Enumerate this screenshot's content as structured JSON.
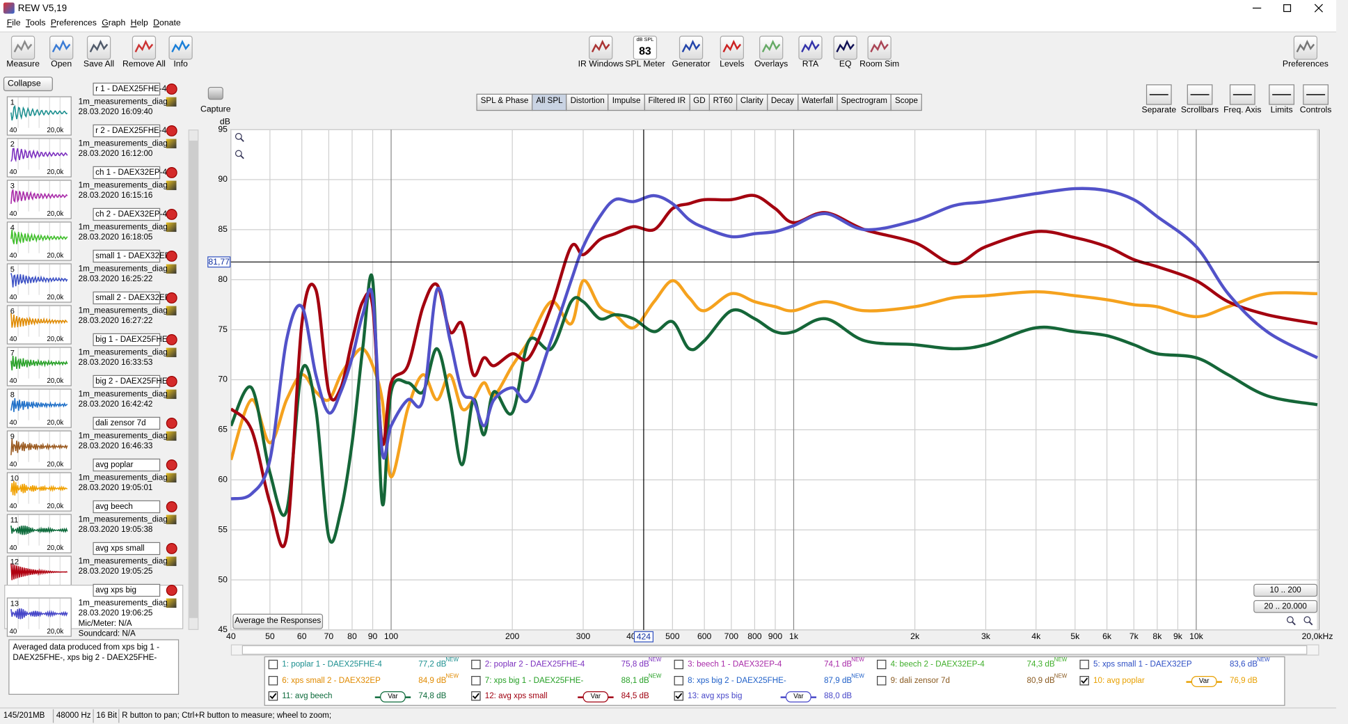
{
  "window": {
    "title": "REW V5,19"
  },
  "menu": [
    "File",
    "Tools",
    "Preferences",
    "Graph",
    "Help",
    "Donate"
  ],
  "toolbar": {
    "left": [
      "Measure",
      "Open",
      "Save All",
      "Remove All",
      "Info"
    ],
    "center": [
      "IR Windows",
      "SPL Meter",
      "Generator",
      "Levels",
      "Overlays",
      "RTA",
      "EQ",
      "Room Sim"
    ],
    "spl_meter_icon": {
      "unit": "dB SPL",
      "reading": "83"
    },
    "right": [
      "Preferences"
    ]
  },
  "panel": {
    "collapse": "Collapse",
    "thumb_axis": [
      "40",
      "20,0k"
    ],
    "measurements": [
      {
        "number": "1",
        "name": "r 1 - DAEX25FHE-4",
        "file": "1m_measurements_diag",
        "date": "28.03.2020 16:09:40",
        "color": "#1b8f8f"
      },
      {
        "number": "2",
        "name": "r 2 - DAEX25FHE-4",
        "file": "1m_measurements_diag",
        "date": "28.03.2020 16:12:00",
        "color": "#7b2fbe"
      },
      {
        "number": "3",
        "name": "ch 1 - DAEX32EP-4",
        "file": "1m_measurements_diag",
        "date": "28.03.2020 16:15:16",
        "color": "#a82aa8"
      },
      {
        "number": "4",
        "name": "ch 2 - DAEX32EP-4",
        "file": "1m_measurements_diag",
        "date": "28.03.2020 16:18:05",
        "color": "#3fbe2a"
      },
      {
        "number": "5",
        "name": "small 1 - DAEX32EP",
        "file": "1m_measurements_diag",
        "date": "28.03.2020 16:25:22",
        "color": "#3a4fc4"
      },
      {
        "number": "6",
        "name": "small 2 - DAEX32EP",
        "file": "1m_measurements_diag",
        "date": "28.03.2020 16:27:22",
        "color": "#e08a00"
      },
      {
        "number": "7",
        "name": "big 1 - DAEX25FHE-",
        "file": "1m_measurements_diag",
        "date": "28.03.2020 16:33:53",
        "color": "#26a026"
      },
      {
        "number": "8",
        "name": "big 2 - DAEX25FHE-",
        "file": "1m_measurements_diag",
        "date": "28.03.2020 16:42:42",
        "color": "#2070c8"
      },
      {
        "number": "9",
        "name": "dali zensor 7d",
        "file": "1m_measurements_diag",
        "date": "28.03.2020 16:46:33",
        "color": "#9a5a20"
      },
      {
        "number": "10",
        "name": "avg poplar",
        "file": "1m_measurements_diag",
        "date": "28.03.2020 19:05:01",
        "color": "#f0a000"
      },
      {
        "number": "11",
        "name": "avg beech",
        "file": "1m_measurements_diag",
        "date": "28.03.2020 19:05:38",
        "color": "#0c6a3a"
      },
      {
        "number": "12",
        "name": "avg xps small",
        "file": "1m_measurements_diag",
        "date": "28.03.2020 19:05:25",
        "color": "#b00010"
      },
      {
        "number": "13",
        "name": "avg xps big",
        "file": "1m_measurements_diag",
        "date": "28.03.2020 19:06:25",
        "color": "#4646c8",
        "mic": "Mic/Meter: N/A",
        "soundcard": "Soundcard: N/A"
      }
    ],
    "notes": "Averaged data produced from xps big 1 - DAEX25FHE-, xps big 2 - DAEX25FHE-"
  },
  "graph": {
    "capture": "Capture",
    "tabs": [
      "SPL & Phase",
      "All SPL",
      "Distortion",
      "Impulse",
      "Filtered IR",
      "GD",
      "RT60",
      "Clarity",
      "Decay",
      "Waterfall",
      "Spectrogram",
      "Scope"
    ],
    "selected_tab": 1,
    "tools": [
      "Separate",
      "Scrollbars",
      "Freq. Axis",
      "Limits",
      "Controls"
    ],
    "range_buttons": [
      "10 .. 200",
      "20 .. 20.000"
    ],
    "average_button": "Average the Responses",
    "legend": [
      {
        "label": "1: poplar 1 - DAEX25FHE-4",
        "value": "77,2 dB",
        "new": "NEW",
        "checked": false,
        "color": "#1b8f8f"
      },
      {
        "label": "2: poplar 2 - DAEX25FHE-4",
        "value": "75,8 dB",
        "new": "NEW",
        "checked": false,
        "color": "#7b2fbe"
      },
      {
        "label": "3: beech 1 - DAEX32EP-4",
        "value": "74,1 dB",
        "new": "NEW",
        "checked": false,
        "color": "#a82aa8"
      },
      {
        "label": "4: beech 2 - DAEX32EP-4",
        "value": "74,3 dB",
        "new": "NEW",
        "checked": false,
        "color": "#3fae2a"
      },
      {
        "label": "5: xps small 1 - DAEX32EP",
        "value": "83,6 dB",
        "new": "NEW",
        "checked": false,
        "color": "#2e4fc4"
      },
      {
        "label": "6: xps small 2 - DAEX32EP",
        "value": "84,9 dB",
        "new": "NEW",
        "checked": false,
        "color": "#e08a00"
      },
      {
        "label": "7: xps big 1 - DAEX25FHE-",
        "value": "88,1 dB",
        "new": "NEW",
        "checked": false,
        "color": "#26a026"
      },
      {
        "label": "8: xps big 2 - DAEX25FHE-",
        "value": "87,9 dB",
        "new": "NEW",
        "checked": false,
        "color": "#2060c8"
      },
      {
        "label": "9: dali zensor 7d",
        "value": "80,9 dB",
        "new": "NEW",
        "checked": false,
        "color": "#8a5a20"
      },
      {
        "label": "10: avg poplar",
        "value": "76,9 dB",
        "var": "Var",
        "checked": true,
        "color": "#e8a000"
      },
      {
        "label": "11: avg beech",
        "value": "74,8 dB",
        "var": "Var",
        "checked": true,
        "color": "#0c6a3a"
      },
      {
        "label": "12: avg xps small",
        "value": "84,5 dB",
        "var": "Var",
        "checked": true,
        "color": "#a00010"
      },
      {
        "label": "13: avg xps big",
        "value": "88,0 dB",
        "var": "Var",
        "checked": true,
        "color": "#4646c8"
      }
    ]
  },
  "status": [
    "145/201MB",
    "48000 Hz",
    "16 Bit",
    "R button to pan; Ctrl+R button to measure; wheel to zoom;"
  ],
  "chart_data": {
    "type": "line",
    "ylabel": "dB",
    "xscale": "log",
    "grid": true,
    "xlim": [
      40,
      20000
    ],
    "ylim": [
      45,
      95
    ],
    "xticks": [
      40,
      50,
      60,
      70,
      80,
      90,
      100,
      200,
      300,
      400,
      500,
      600,
      700,
      800,
      900,
      {
        "value": 1000,
        "label": "1k"
      },
      {
        "value": 2000,
        "label": "2k"
      },
      {
        "value": 3000,
        "label": "3k"
      },
      {
        "value": 4000,
        "label": "4k"
      },
      {
        "value": 5000,
        "label": "5k"
      },
      {
        "value": 6000,
        "label": "6k"
      },
      {
        "value": 7000,
        "label": "7k"
      },
      {
        "value": 8000,
        "label": "8k"
      },
      {
        "value": 9000,
        "label": "9k"
      },
      {
        "value": 10000,
        "label": "10k"
      },
      {
        "value": 20000,
        "label": "20,0kHz"
      }
    ],
    "yticks": [
      45,
      50,
      55,
      60,
      65,
      70,
      75,
      80,
      85,
      90,
      95
    ],
    "cursor": {
      "x": 424,
      "y": {
        "value": 81.77,
        "label": "81,77"
      }
    },
    "x": [
      40,
      45,
      50,
      55,
      60,
      65,
      70,
      75,
      80,
      85,
      90,
      95,
      100,
      110,
      120,
      130,
      140,
      150,
      160,
      170,
      180,
      200,
      220,
      250,
      280,
      300,
      330,
      360,
      400,
      450,
      500,
      550,
      600,
      700,
      800,
      900,
      1000,
      1200,
      1500,
      2000,
      2500,
      3000,
      4000,
      5000,
      6000,
      7000,
      8000,
      10000,
      12000,
      15000,
      20000
    ],
    "series": [
      {
        "name": "10: avg poplar",
        "color": "#f5a21e",
        "values": [
          62,
          68,
          63.7,
          68,
          70.5,
          68.8,
          68,
          70.5,
          72.2,
          73.1,
          71.4,
          68,
          60.3,
          67.1,
          70.5,
          68,
          70.5,
          67.1,
          68,
          69.7,
          68.4,
          71.4,
          73.9,
          77.8,
          75.6,
          79.9,
          77.3,
          76.5,
          75.2,
          77.8,
          79.9,
          78.2,
          76.9,
          78.6,
          77.8,
          77.3,
          76.9,
          77.8,
          76.9,
          77.3,
          78.2,
          78.4,
          78.8,
          78.4,
          78,
          77.5,
          77.3,
          76.3,
          77.3,
          78.6,
          78.6
        ]
      },
      {
        "name": "11: avg beech",
        "color": "#156638",
        "values": [
          65.4,
          69.2,
          60.7,
          56.9,
          70.9,
          67.1,
          54.3,
          56.9,
          63.7,
          73.1,
          79.9,
          57.7,
          68.8,
          69.7,
          68.8,
          73.1,
          68,
          61.5,
          68,
          64.5,
          68.8,
          66.7,
          73.9,
          73.1,
          77.8,
          77.8,
          76.1,
          76.5,
          76.1,
          74.8,
          75.8,
          73.1,
          73.9,
          76.9,
          76.1,
          74.8,
          74.8,
          76.1,
          73.9,
          73.5,
          73.1,
          73.5,
          75.2,
          74.8,
          74.4,
          73.5,
          72.6,
          72.2,
          70.5,
          68.4,
          67.5
        ]
      },
      {
        "name": "12: avg xps small",
        "color": "#a3000f",
        "values": [
          67.1,
          65,
          57.7,
          54.3,
          75.6,
          79,
          68.8,
          69.2,
          73.9,
          77.8,
          77.3,
          63.7,
          69.7,
          71.4,
          77.3,
          79.5,
          74.8,
          75.6,
          70.5,
          72.2,
          71.4,
          72.6,
          72.2,
          77.3,
          83.3,
          82.5,
          84,
          84.6,
          85.3,
          85,
          87.1,
          87.6,
          88,
          88,
          88.4,
          87.1,
          85.7,
          86.7,
          85,
          83.7,
          81.6,
          83.3,
          84.8,
          84.2,
          83.3,
          82,
          81.3,
          79.9,
          77.8,
          76.5,
          75.6
        ]
      },
      {
        "name": "13: avg xps big",
        "color": "#5252c9",
        "values": [
          58.1,
          58.6,
          62,
          74,
          77.3,
          70.5,
          66.7,
          68.8,
          72.2,
          76.5,
          78.2,
          62.8,
          65.4,
          68,
          68,
          79,
          74,
          68.8,
          68,
          65.4,
          68,
          69.2,
          68,
          74,
          79.9,
          83.3,
          86.3,
          88,
          87.8,
          88.4,
          87.6,
          86,
          85.2,
          84.3,
          84.6,
          84.8,
          85.4,
          86.6,
          85,
          85.9,
          87.4,
          87.8,
          88.6,
          89.1,
          88.9,
          88,
          86.3,
          83.3,
          78.6,
          74.8,
          72.2
        ]
      }
    ]
  }
}
